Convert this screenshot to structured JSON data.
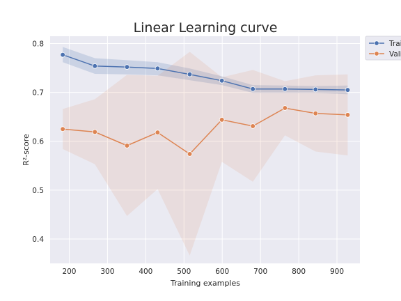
{
  "chart_data": {
    "type": "line",
    "title": "Linear Learning curve",
    "xlabel": "Training examples",
    "ylabel": "R²-score",
    "xlim": [
      150,
      960
    ],
    "ylim": [
      0.35,
      0.815
    ],
    "xticks": [
      200,
      300,
      400,
      500,
      600,
      700,
      800,
      900
    ],
    "yticks": [
      0.4,
      0.5,
      0.6,
      0.7,
      0.8
    ],
    "grid": true,
    "legend_position": "outside top-right",
    "x": [
      183,
      267,
      351,
      431,
      515,
      599,
      680,
      764,
      844,
      928
    ],
    "series": [
      {
        "name": "Training score",
        "color": "#4c72b0",
        "values": [
          0.777,
          0.754,
          0.752,
          0.749,
          0.737,
          0.724,
          0.707,
          0.707,
          0.706,
          0.705
        ],
        "band_upper": [
          0.793,
          0.77,
          0.766,
          0.762,
          0.749,
          0.733,
          0.715,
          0.714,
          0.713,
          0.714
        ],
        "band_lower": [
          0.762,
          0.738,
          0.737,
          0.735,
          0.725,
          0.715,
          0.699,
          0.699,
          0.699,
          0.696
        ]
      },
      {
        "name": "Validation score",
        "color": "#dd8452",
        "values": [
          0.625,
          0.619,
          0.591,
          0.618,
          0.574,
          0.644,
          0.631,
          0.668,
          0.657,
          0.654
        ],
        "band_upper": [
          0.666,
          0.686,
          0.736,
          0.734,
          0.783,
          0.731,
          0.746,
          0.723,
          0.735,
          0.737
        ],
        "band_lower": [
          0.584,
          0.553,
          0.447,
          0.502,
          0.366,
          0.558,
          0.517,
          0.612,
          0.579,
          0.571
        ]
      }
    ]
  }
}
